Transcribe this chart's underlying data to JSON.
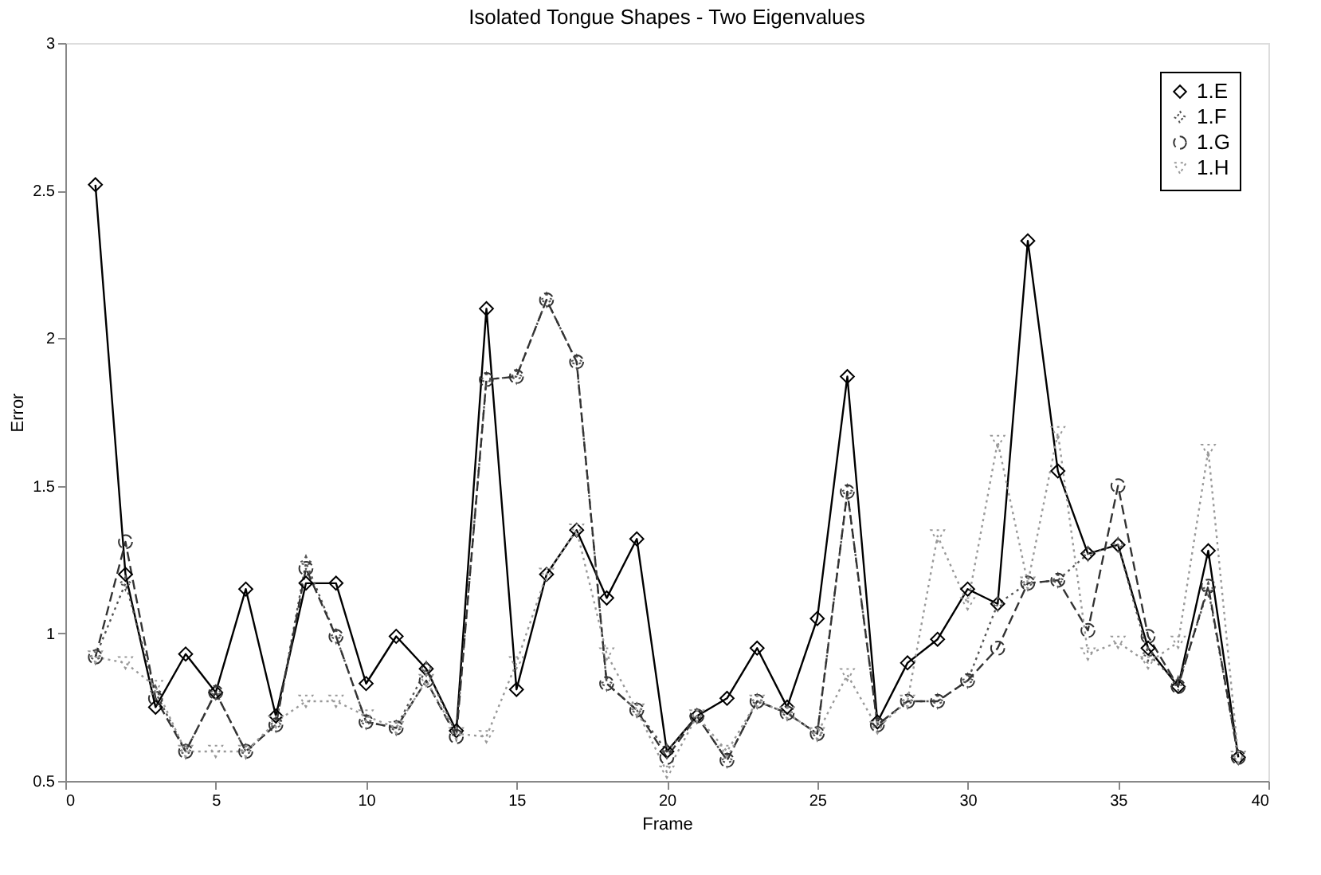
{
  "chart_data": {
    "type": "line",
    "title": "Isolated Tongue Shapes - Two Eigenvalues",
    "xlabel": "Frame",
    "ylabel": "Error",
    "x": [
      1,
      2,
      3,
      4,
      5,
      6,
      7,
      8,
      9,
      10,
      11,
      12,
      13,
      14,
      15,
      16,
      17,
      18,
      19,
      20,
      21,
      22,
      23,
      24,
      25,
      26,
      27,
      28,
      29,
      30,
      31,
      32,
      33,
      34,
      35,
      36,
      37,
      38,
      39
    ],
    "series": [
      {
        "name": "1.E",
        "color": "#000000",
        "marker": "diamond",
        "line_style": "solid",
        "values": [
          2.52,
          1.2,
          0.75,
          0.93,
          0.8,
          1.15,
          0.72,
          1.17,
          1.17,
          0.83,
          0.99,
          0.88,
          0.67,
          2.1,
          0.81,
          1.2,
          1.35,
          1.12,
          1.32,
          0.6,
          0.72,
          0.78,
          0.95,
          0.75,
          1.05,
          1.87,
          0.7,
          0.9,
          0.98,
          1.15,
          1.1,
          2.33,
          1.55,
          1.27,
          1.3,
          0.95,
          0.82,
          1.28,
          0.58
        ]
      },
      {
        "name": "1.F",
        "color": "#555555",
        "marker": "star",
        "line_style": "dotted",
        "values": [
          0.92,
          1.17,
          0.8,
          0.6,
          0.8,
          0.6,
          0.69,
          1.24,
          0.99,
          0.7,
          0.68,
          0.88,
          0.66,
          1.86,
          1.87,
          2.13,
          1.92,
          0.83,
          0.74,
          0.6,
          0.72,
          0.57,
          0.77,
          0.73,
          0.66,
          1.48,
          0.69,
          0.77,
          0.77,
          0.84,
          1.1,
          1.17,
          1.18,
          1.27,
          1.3,
          0.93,
          0.83,
          1.15,
          0.58
        ]
      },
      {
        "name": "1.G",
        "color": "#333333",
        "marker": "circle",
        "line_style": "dashed",
        "values": [
          0.92,
          1.31,
          0.78,
          0.6,
          0.8,
          0.6,
          0.69,
          1.22,
          0.99,
          0.7,
          0.68,
          0.84,
          0.65,
          1.86,
          1.87,
          2.13,
          1.92,
          0.83,
          0.74,
          0.58,
          0.72,
          0.57,
          0.77,
          0.73,
          0.66,
          1.48,
          0.69,
          0.77,
          0.77,
          0.84,
          0.95,
          1.17,
          1.18,
          1.01,
          1.5,
          0.99,
          0.82,
          1.16,
          0.58
        ]
      },
      {
        "name": "1.H",
        "color": "#999999",
        "marker": "triangle",
        "line_style": "dotted",
        "values": [
          0.92,
          0.9,
          0.82,
          0.6,
          0.6,
          0.6,
          0.7,
          0.77,
          0.77,
          0.72,
          0.68,
          0.84,
          0.66,
          0.65,
          0.9,
          1.2,
          1.35,
          0.93,
          0.74,
          0.53,
          0.72,
          0.6,
          0.77,
          0.73,
          0.66,
          0.86,
          0.68,
          0.77,
          1.33,
          1.1,
          1.65,
          1.17,
          1.68,
          0.93,
          0.97,
          0.9,
          0.97,
          1.62,
          0.58
        ]
      }
    ],
    "xlim": [
      0,
      40
    ],
    "xticks": [
      0,
      5,
      10,
      15,
      20,
      25,
      30,
      35,
      40
    ],
    "ylim": [
      0.5,
      3
    ],
    "yticks": [
      0.5,
      1,
      1.5,
      2,
      2.5,
      3
    ],
    "grid": false,
    "legend": "top right"
  }
}
